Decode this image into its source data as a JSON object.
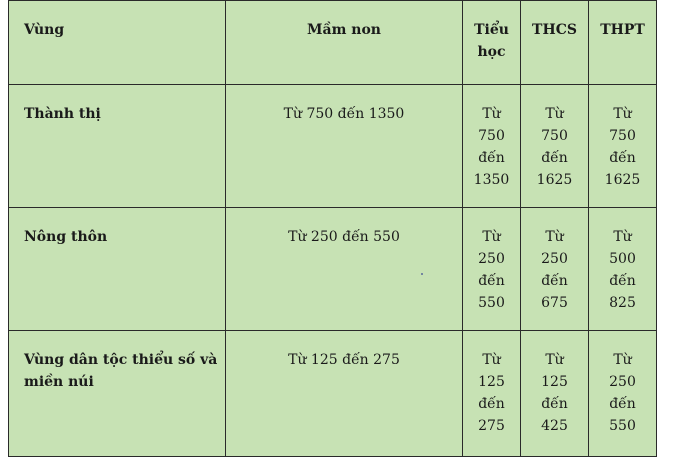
{
  "header": {
    "region": "Vùng",
    "preschool": "Mầm non",
    "primary_line1": "Tiểu",
    "primary_line2": "học",
    "lower_secondary": "THCS",
    "upper_secondary": "THPT"
  },
  "rows": [
    {
      "region": "Thành thị",
      "preschool": "Từ 750 đến 1350",
      "primary": [
        "Từ",
        "750",
        "đến",
        "1350"
      ],
      "lower_secondary": [
        "Từ",
        "750",
        "đến",
        "1625"
      ],
      "upper_secondary": [
        "Từ",
        "750",
        "đến",
        "1625"
      ]
    },
    {
      "region": "Nông thôn",
      "preschool": "Từ 250 đến 550",
      "primary": [
        "Từ",
        "250",
        "đến",
        "550"
      ],
      "lower_secondary": [
        "Từ",
        "250",
        "đến",
        "675"
      ],
      "upper_secondary": [
        "Từ",
        "500",
        "đến",
        "825"
      ]
    },
    {
      "region_line1": "Vùng dân tộc thiểu số và",
      "region_line2": "miền núi",
      "preschool": "Từ 125 đến 275",
      "primary": [
        "Từ",
        "125",
        "đến",
        "275"
      ],
      "lower_secondary": [
        "Từ",
        "125",
        "đến",
        "425"
      ],
      "upper_secondary": [
        "Từ",
        "250",
        "đến",
        "550"
      ]
    }
  ],
  "colors": {
    "cell_background": "#c7e2b4",
    "border": "#2a2a2a"
  }
}
